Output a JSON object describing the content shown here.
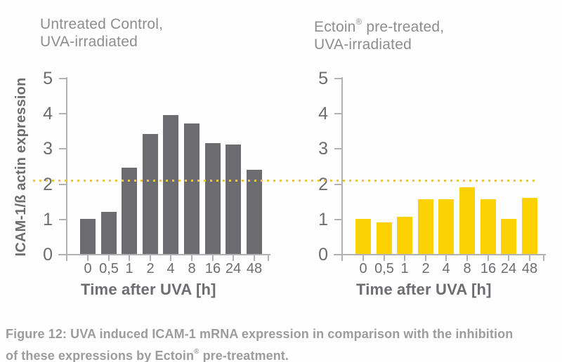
{
  "caption": {
    "lines": [
      "Figure 12: UVA induced ICAM-1 mRNA expression in comparison with the inhibition",
      "of these expressions by Ectoin® pre-treatment."
    ]
  },
  "colors": {
    "bar_gray": "#6b6b70",
    "bar_yellow": "#fdd205",
    "threshold_yellow": "#ecc73b",
    "axis_gray": "#b2b2b5",
    "tick_text": "#6c6c71",
    "title_text": "#8d8d90",
    "label_text": "#6d6d71",
    "caption_text": "#9c9c9c"
  },
  "threshold_line": {
    "value": 2.1,
    "style": "dotted",
    "color": "#ecc73b",
    "spans_both_charts": true
  },
  "chart_data": [
    {
      "type": "bar",
      "title": "Untreated Control, UVA-irradiated",
      "title_lines": [
        "Untreated Control,",
        "UVA-irradiated"
      ],
      "categories": [
        "0",
        "0,5",
        "1",
        "2",
        "4",
        "8",
        "16",
        "24",
        "48"
      ],
      "values": [
        1.0,
        1.2,
        2.45,
        3.4,
        3.95,
        3.7,
        3.15,
        3.1,
        2.4
      ],
      "xlabel": "Time after UVA [h]",
      "ylabel": "ICAM-1/ß actin expression",
      "ylim": [
        0,
        5
      ],
      "yticks": [
        0,
        1,
        2,
        3,
        4,
        5
      ],
      "bar_color": "#6b6b70",
      "threshold": 2.1,
      "grid": false,
      "legend": null
    },
    {
      "type": "bar",
      "title": "Ectoin® pre-treated, UVA-irradiated",
      "title_lines": [
        "Ectoin® pre-treated,",
        "UVA-irradiated"
      ],
      "categories": [
        "0",
        "0,5",
        "1",
        "2",
        "4",
        "8",
        "16",
        "24",
        "48"
      ],
      "values": [
        1.0,
        0.9,
        1.05,
        1.55,
        1.55,
        1.9,
        1.55,
        1.0,
        1.6
      ],
      "xlabel": "Time after UVA [h]",
      "ylim": [
        0,
        5
      ],
      "yticks": [
        0,
        1,
        2,
        3,
        4,
        5
      ],
      "bar_color": "#fdd205",
      "threshold": 2.1,
      "grid": false,
      "legend": null
    }
  ]
}
